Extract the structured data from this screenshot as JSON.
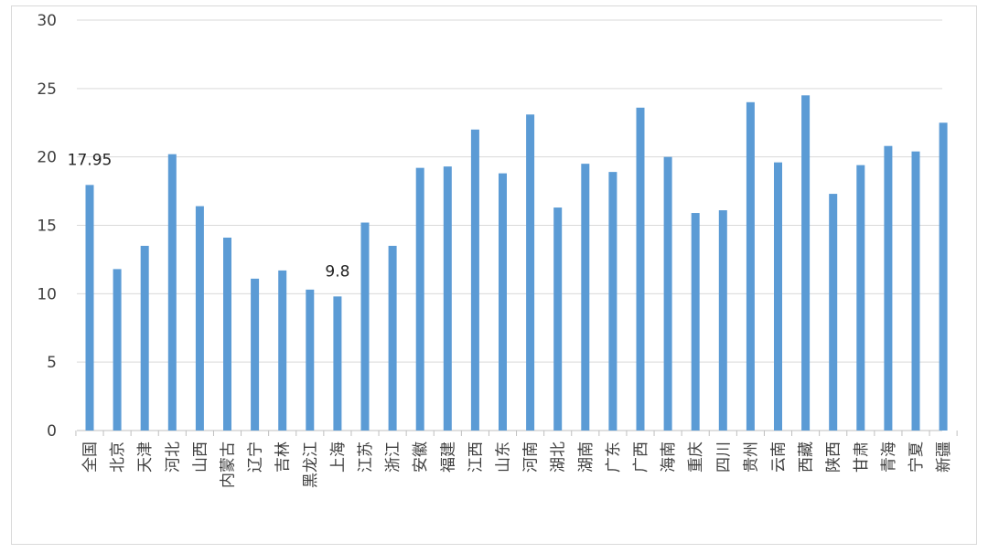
{
  "chart_data": {
    "type": "bar",
    "title": "",
    "xlabel": "",
    "ylabel": "",
    "ylim": [
      0,
      30
    ],
    "yticks": [
      0,
      5,
      10,
      15,
      20,
      25,
      30
    ],
    "grid": true,
    "legend": "none",
    "bar_color": "#5b9bd5",
    "categories": [
      "全国",
      "北京",
      "天津",
      "河北",
      "山西",
      "内蒙古",
      "辽宁",
      "吉林",
      "黑龙江",
      "上海",
      "江苏",
      "浙江",
      "安徽",
      "福建",
      "江西",
      "山东",
      "河南",
      "湖北",
      "湖南",
      "广东",
      "广西",
      "海南",
      "重庆",
      "四川",
      "贵州",
      "云南",
      "西藏",
      "陕西",
      "甘肃",
      "青海",
      "宁夏",
      "新疆"
    ],
    "values": [
      17.95,
      11.8,
      13.5,
      20.2,
      16.4,
      14.1,
      11.1,
      11.7,
      10.3,
      9.8,
      15.2,
      13.5,
      19.2,
      19.3,
      22.0,
      18.8,
      23.1,
      16.3,
      19.5,
      18.9,
      23.6,
      20.0,
      15.9,
      16.1,
      24.0,
      19.6,
      24.5,
      17.3,
      19.4,
      20.8,
      20.4,
      22.5
    ],
    "data_labels": [
      {
        "category": "全国",
        "text": "17.95"
      },
      {
        "category": "上海",
        "text": "9.8"
      }
    ]
  }
}
